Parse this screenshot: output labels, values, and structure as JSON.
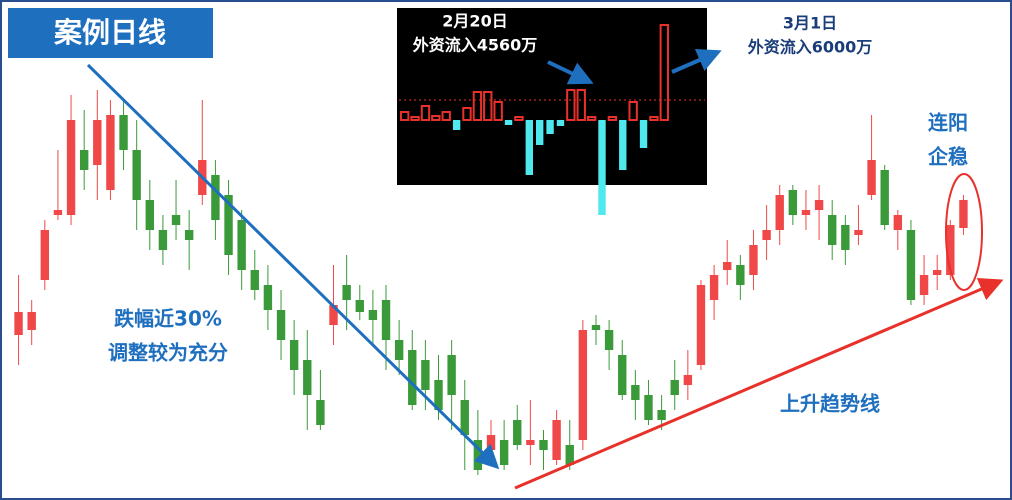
{
  "header": {
    "title": "案例日线"
  },
  "inset": {
    "left_note": [
      "2月20日",
      "外资流入4560万"
    ],
    "right_note": [
      "3月1日",
      "外资流入6000万"
    ]
  },
  "annotations": {
    "drop": [
      "跌幅近30%",
      "调整较为充分"
    ],
    "trend": "上升趋势线",
    "stable": [
      "连阳",
      "企稳"
    ]
  }
}
